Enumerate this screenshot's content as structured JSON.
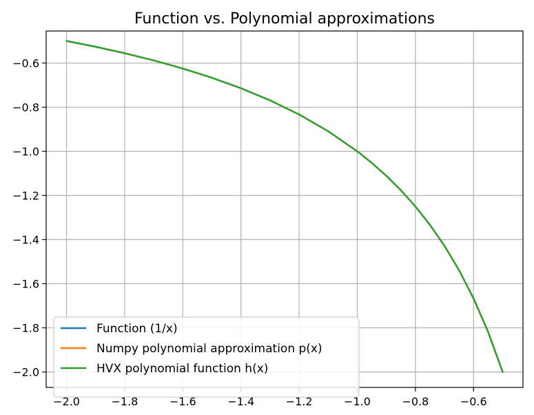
{
  "chart_data": {
    "type": "line",
    "title": "Function vs. Polynomial approximations",
    "xlabel": "",
    "ylabel": "",
    "xlim": [
      -2.07,
      -0.43
    ],
    "ylim": [
      -2.07,
      -0.455
    ],
    "grid": true,
    "legend_position": "lower left",
    "x_ticks": [
      -2.0,
      -1.8,
      -1.6,
      -1.4,
      -1.2,
      -1.0,
      -0.8,
      -0.6
    ],
    "x_tick_labels": [
      "−2.0",
      "−1.8",
      "−1.6",
      "−1.4",
      "−1.2",
      "−1.0",
      "−0.8",
      "−0.6"
    ],
    "y_ticks": [
      -0.6,
      -0.8,
      -1.0,
      -1.2,
      -1.4,
      -1.6,
      -1.8,
      -2.0
    ],
    "y_tick_labels": [
      "−0.6",
      "−0.8",
      "−1.0",
      "−1.2",
      "−1.4",
      "−1.6",
      "−1.8",
      "−2.0"
    ],
    "x": [
      -2.0,
      -1.9,
      -1.8,
      -1.7,
      -1.6,
      -1.5,
      -1.4,
      -1.3,
      -1.2,
      -1.1,
      -1.0,
      -0.95,
      -0.9,
      -0.85,
      -0.8,
      -0.75,
      -0.7,
      -0.65,
      -0.6,
      -0.55,
      -0.5
    ],
    "series": [
      {
        "name": "Function (1/x)",
        "color": "#1f77b4",
        "values": [
          -0.5,
          -0.5263,
          -0.5556,
          -0.5882,
          -0.625,
          -0.6667,
          -0.7143,
          -0.7692,
          -0.8333,
          -0.9091,
          -1.0,
          -1.0526,
          -1.1111,
          -1.1765,
          -1.25,
          -1.3333,
          -1.4286,
          -1.5385,
          -1.6667,
          -1.8182,
          -2.0
        ]
      },
      {
        "name": "Numpy polynomial approximation p(x)",
        "color": "#ff7f0e",
        "values": [
          -0.5,
          -0.5263,
          -0.5556,
          -0.5882,
          -0.625,
          -0.6667,
          -0.7143,
          -0.7692,
          -0.8333,
          -0.9091,
          -1.0,
          -1.0526,
          -1.1111,
          -1.1765,
          -1.25,
          -1.3333,
          -1.4286,
          -1.5385,
          -1.6667,
          -1.8182,
          -2.0
        ]
      },
      {
        "name": "HVX polynomial function h(x)",
        "color": "#2ca02c",
        "values": [
          -0.5,
          -0.5263,
          -0.5556,
          -0.5882,
          -0.625,
          -0.6667,
          -0.7143,
          -0.7692,
          -0.8333,
          -0.9091,
          -1.0,
          -1.0526,
          -1.1111,
          -1.1765,
          -1.25,
          -1.3333,
          -1.4286,
          -1.5385,
          -1.6667,
          -1.8182,
          -2.0
        ]
      }
    ]
  }
}
